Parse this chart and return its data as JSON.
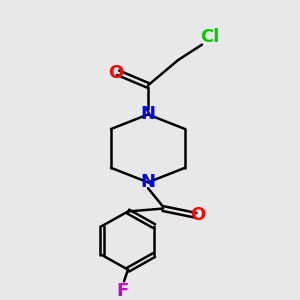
{
  "bg_color": "#e8e8e8",
  "bond_color": "#000000",
  "N_color": "#0000ff",
  "O_color": "#ff0000",
  "Cl_color": "#00cc00",
  "F_color": "#cc00cc",
  "label_N": "N",
  "label_O": "O",
  "label_Cl": "Cl",
  "label_F": "F",
  "fontsize": 13
}
